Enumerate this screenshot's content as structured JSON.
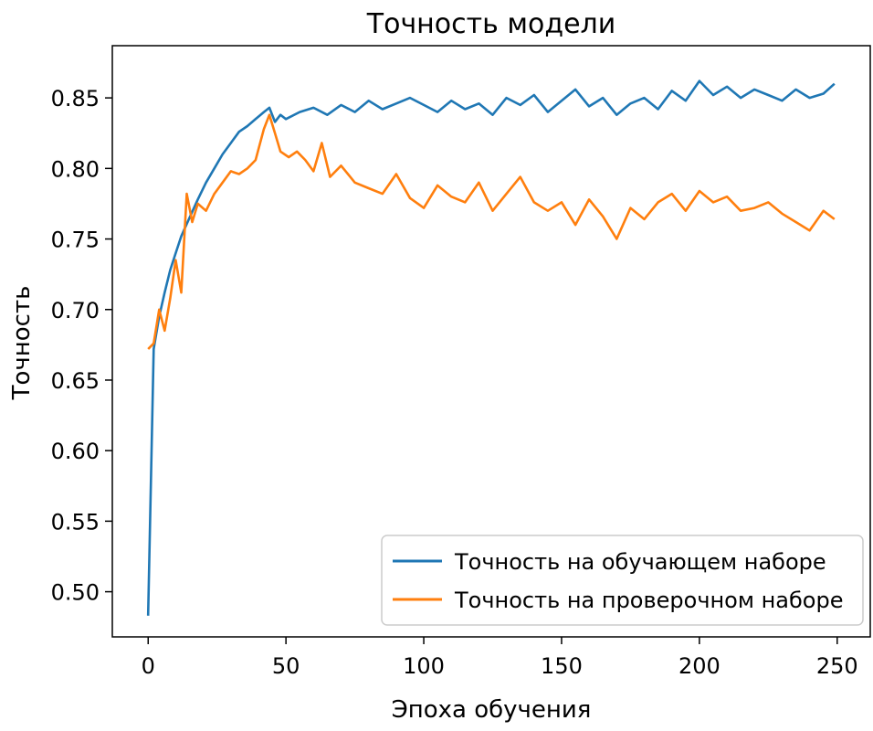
{
  "chart_data": {
    "type": "line",
    "title": "Точность модели",
    "xlabel": "Эпоха обучения",
    "ylabel": "Точность",
    "xlim": [
      -13,
      262
    ],
    "ylim": [
      0.468,
      0.887
    ],
    "xticks": [
      0,
      50,
      100,
      150,
      200,
      250
    ],
    "xtick_labels": [
      "0",
      "50",
      "100",
      "150",
      "200",
      "250"
    ],
    "yticks": [
      0.5,
      0.55,
      0.6,
      0.65,
      0.7,
      0.75,
      0.8,
      0.85
    ],
    "ytick_labels": [
      "0.50",
      "0.55",
      "0.60",
      "0.65",
      "0.70",
      "0.75",
      "0.80",
      "0.85"
    ],
    "grid": false,
    "legend_position": "lower-right",
    "series": [
      {
        "name": "Точность на обучающем наборе",
        "color": "#1f77b4",
        "x": [
          0,
          2,
          4,
          6,
          8,
          10,
          12,
          15,
          18,
          21,
          24,
          27,
          30,
          33,
          36,
          39,
          42,
          44,
          46,
          48,
          50,
          55,
          60,
          65,
          70,
          75,
          80,
          85,
          90,
          95,
          100,
          105,
          110,
          115,
          120,
          125,
          130,
          135,
          140,
          145,
          150,
          155,
          160,
          165,
          170,
          175,
          180,
          185,
          190,
          195,
          200,
          205,
          210,
          215,
          220,
          225,
          230,
          235,
          240,
          245,
          249
        ],
        "y": [
          0.483,
          0.672,
          0.695,
          0.712,
          0.728,
          0.74,
          0.752,
          0.765,
          0.778,
          0.79,
          0.8,
          0.81,
          0.818,
          0.826,
          0.83,
          0.835,
          0.84,
          0.843,
          0.833,
          0.838,
          0.835,
          0.84,
          0.843,
          0.838,
          0.845,
          0.84,
          0.848,
          0.842,
          0.846,
          0.85,
          0.845,
          0.84,
          0.848,
          0.842,
          0.846,
          0.838,
          0.85,
          0.845,
          0.852,
          0.84,
          0.848,
          0.856,
          0.844,
          0.85,
          0.838,
          0.846,
          0.85,
          0.842,
          0.855,
          0.848,
          0.862,
          0.852,
          0.858,
          0.85,
          0.856,
          0.852,
          0.848,
          0.856,
          0.85,
          0.853,
          0.86
        ]
      },
      {
        "name": "Точность на проверочном наборе",
        "color": "#ff7f0e",
        "x": [
          0,
          2,
          4,
          6,
          8,
          10,
          12,
          14,
          16,
          18,
          21,
          24,
          27,
          30,
          33,
          36,
          39,
          42,
          44,
          46,
          48,
          51,
          54,
          57,
          60,
          63,
          66,
          70,
          75,
          80,
          85,
          90,
          95,
          100,
          105,
          110,
          115,
          120,
          125,
          130,
          135,
          140,
          145,
          150,
          155,
          160,
          165,
          170,
          175,
          180,
          185,
          190,
          195,
          200,
          205,
          210,
          215,
          220,
          225,
          230,
          235,
          240,
          245,
          249
        ],
        "y": [
          0.672,
          0.676,
          0.7,
          0.685,
          0.708,
          0.735,
          0.712,
          0.782,
          0.762,
          0.775,
          0.77,
          0.782,
          0.79,
          0.798,
          0.796,
          0.8,
          0.806,
          0.828,
          0.838,
          0.825,
          0.812,
          0.808,
          0.812,
          0.806,
          0.798,
          0.818,
          0.794,
          0.802,
          0.79,
          0.786,
          0.782,
          0.796,
          0.779,
          0.772,
          0.788,
          0.78,
          0.776,
          0.79,
          0.77,
          0.782,
          0.794,
          0.776,
          0.77,
          0.776,
          0.76,
          0.778,
          0.766,
          0.75,
          0.772,
          0.764,
          0.776,
          0.782,
          0.77,
          0.784,
          0.776,
          0.78,
          0.77,
          0.772,
          0.776,
          0.768,
          0.762,
          0.756,
          0.77,
          0.764
        ]
      }
    ]
  }
}
